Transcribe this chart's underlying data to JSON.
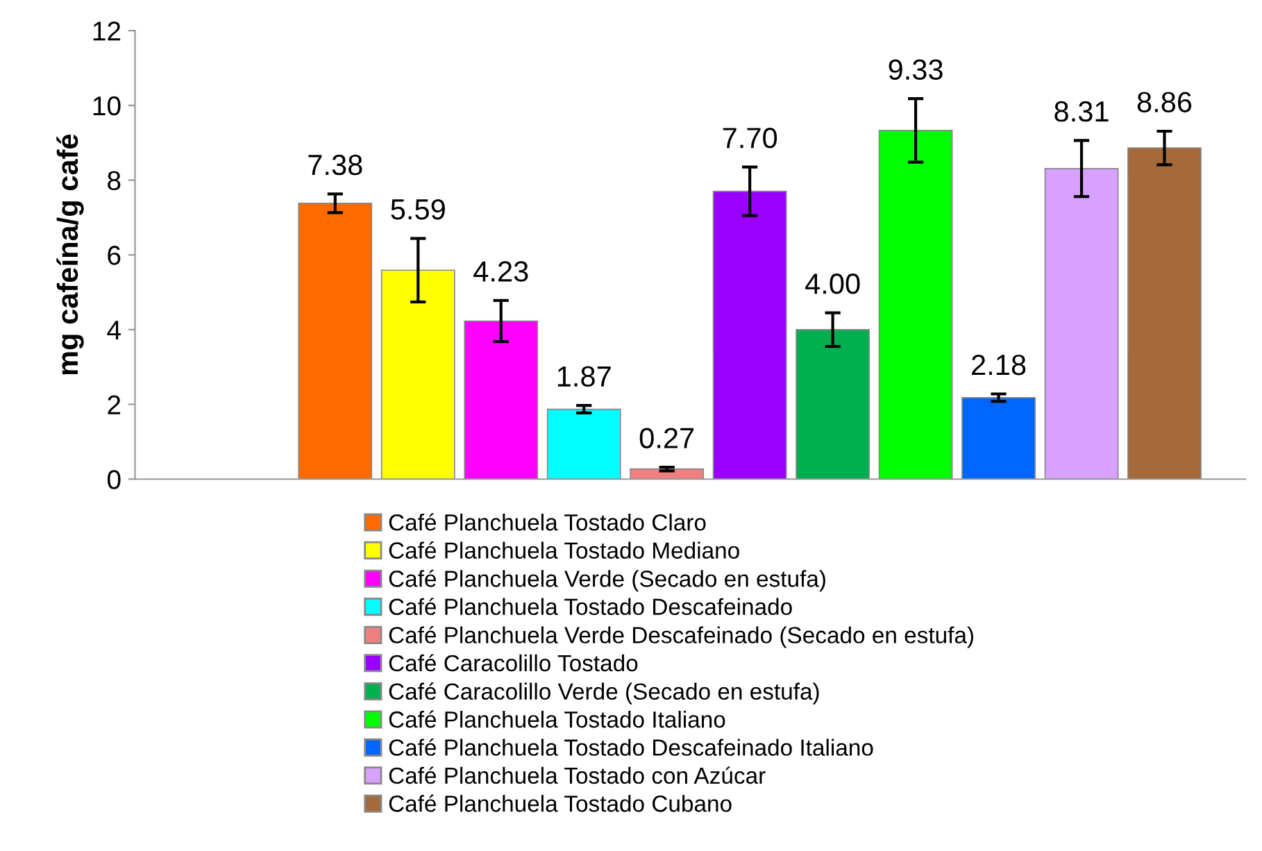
{
  "chart_data": {
    "type": "bar",
    "ylabel": "mg cafeína/g café",
    "categories": [
      null
    ],
    "ylim": [
      0,
      12
    ],
    "yticks": [
      0,
      2,
      4,
      6,
      8,
      10,
      12
    ],
    "grid": false,
    "legend": "bottom",
    "series": [
      {
        "name": "Café Planchuela Tostado Claro",
        "color": "#ff6a00",
        "values": [
          7.38
        ],
        "errors": [
          0.25
        ],
        "value_labels": [
          "7.38"
        ]
      },
      {
        "name": "Café Planchuela Tostado Mediano",
        "color": "#ffff00",
        "values": [
          5.59
        ],
        "errors": [
          0.85
        ],
        "value_labels": [
          "5.59"
        ]
      },
      {
        "name": "Café Planchuela Verde (Secado en estufa)",
        "color": "#ff00ff",
        "values": [
          4.23
        ],
        "errors": [
          0.55
        ],
        "value_labels": [
          "4.23"
        ]
      },
      {
        "name": "Café Planchuela Tostado Descafeinado",
        "color": "#00ffff",
        "values": [
          1.87
        ],
        "errors": [
          0.1
        ],
        "value_labels": [
          "1.87"
        ]
      },
      {
        "name": "Café Planchuela Verde Descafeinado (Secado en estufa)",
        "color": "#f08080",
        "values": [
          0.27
        ],
        "errors": [
          0.05
        ],
        "value_labels": [
          "0.27"
        ]
      },
      {
        "name": "Café Caracolillo Tostado",
        "color": "#9900ff",
        "values": [
          7.7
        ],
        "errors": [
          0.65
        ],
        "value_labels": [
          "7.70"
        ]
      },
      {
        "name": "Café Caracolillo Verde (Secado en estufa)",
        "color": "#00b050",
        "values": [
          4.0
        ],
        "errors": [
          0.45
        ],
        "value_labels": [
          "4.00"
        ]
      },
      {
        "name": "Café Planchuela Tostado Italiano",
        "color": "#00ff00",
        "values": [
          9.33
        ],
        "errors": [
          0.85
        ],
        "value_labels": [
          "9.33"
        ]
      },
      {
        "name": "Café Planchuela Tostado Descafeinado Italiano",
        "color": "#0066ff",
        "values": [
          2.18
        ],
        "errors": [
          0.1
        ],
        "value_labels": [
          "2.18"
        ]
      },
      {
        "name": "Café Planchuela Tostado con Azúcar",
        "color": "#d8a0ff",
        "values": [
          8.31
        ],
        "errors": [
          0.75
        ],
        "value_labels": [
          "8.31"
        ]
      },
      {
        "name": "Café Planchuela Tostado Cubano",
        "color": "#a5693a",
        "values": [
          8.86
        ],
        "errors": [
          0.45
        ],
        "value_labels": [
          "8.86"
        ]
      }
    ]
  }
}
